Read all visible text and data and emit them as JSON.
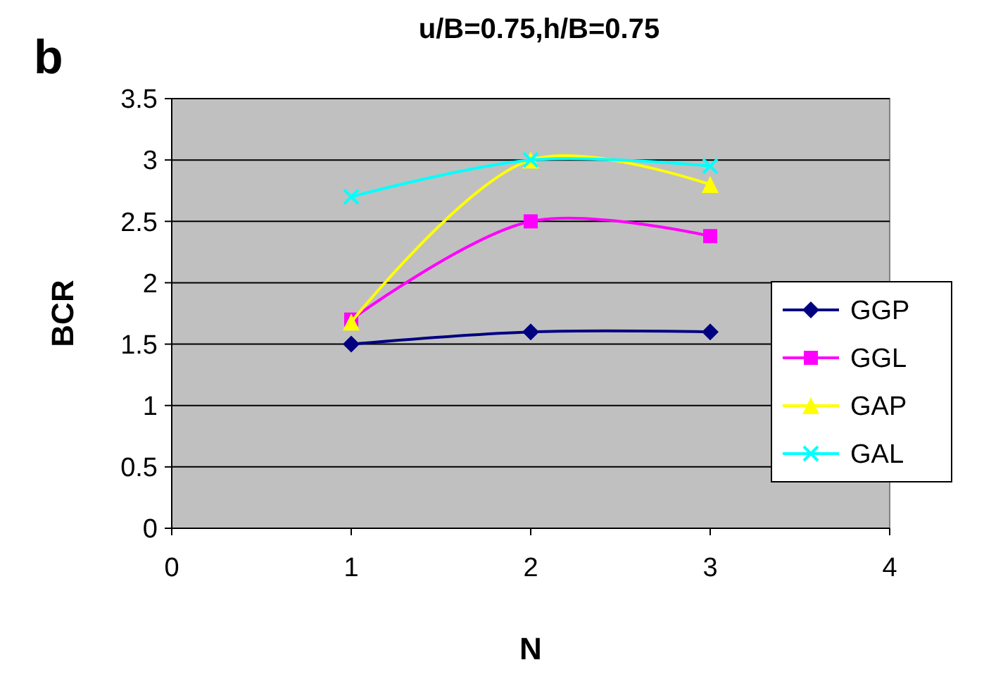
{
  "chart_data": {
    "type": "line",
    "title": "u/B=0.75,h/B=0.75",
    "xlabel": "N",
    "ylabel": "BCR",
    "annotations": [
      "b"
    ],
    "x": [
      1,
      2,
      3
    ],
    "series": [
      {
        "name": "GGP",
        "color": "#000080",
        "values": [
          1.5,
          1.6,
          1.6
        ],
        "marker": "diamond"
      },
      {
        "name": "GGL",
        "color": "#ff00ff",
        "values": [
          1.7,
          2.5,
          2.38
        ],
        "marker": "square"
      },
      {
        "name": "GAP",
        "color": "#ffff00",
        "values": [
          1.68,
          3.0,
          2.8
        ],
        "marker": "triangle"
      },
      {
        "name": "GAL",
        "color": "#00ffff",
        "values": [
          2.7,
          3.0,
          2.95
        ],
        "marker": "cross"
      }
    ],
    "xlim": [
      0,
      4
    ],
    "xticks": [
      0,
      1,
      2,
      3,
      4
    ],
    "ylim": [
      0,
      3.5
    ],
    "yticks": [
      0,
      {
        "value": 0.5,
        "label": "0.5"
      },
      1,
      {
        "value": 1.5,
        "label": "1.5"
      },
      2,
      {
        "value": 2.5,
        "label": "2.5"
      },
      3,
      {
        "value": 3.5,
        "label": "3.5"
      }
    ],
    "grid": "y",
    "legend": "right"
  }
}
